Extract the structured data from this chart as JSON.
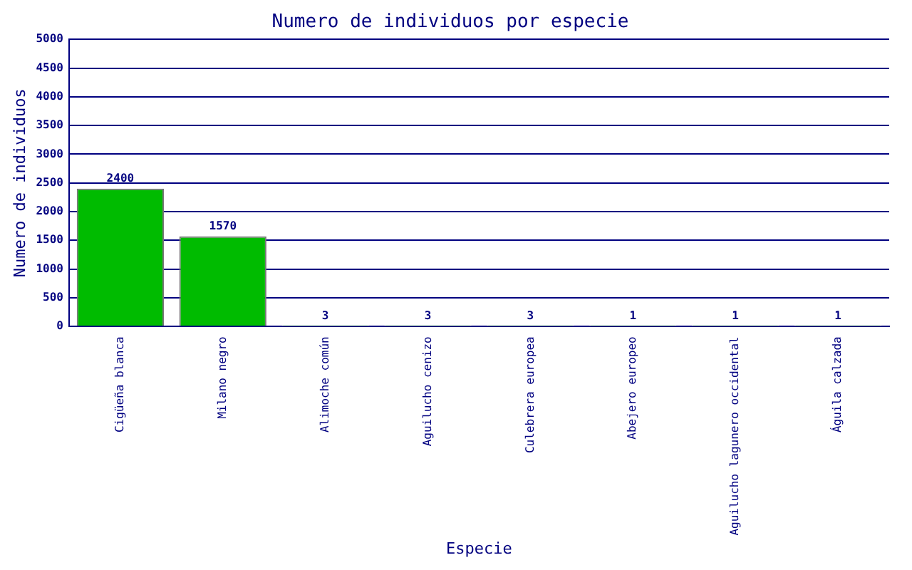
{
  "chart_data": {
    "type": "bar",
    "title": "Numero de individuos por especie",
    "xlabel": "Especie",
    "ylabel": "Numero de individuos",
    "categories": [
      "Cigüeña blanca",
      "Milano negro",
      "Alimoche común",
      "Aguilucho cenizo",
      "Culebrera europea",
      "Abejero europeo",
      "Aguilucho lagunero occidental",
      "Águila calzada"
    ],
    "values": [
      2400,
      1570,
      3,
      3,
      3,
      1,
      1,
      1
    ],
    "color": "#00bb00",
    "ylim": [
      0,
      5000
    ],
    "yticks": [
      0,
      500,
      1000,
      1500,
      2000,
      2500,
      3000,
      3500,
      4000,
      4500,
      5000
    ],
    "grid": "y",
    "data_labels": true,
    "legend": false
  }
}
